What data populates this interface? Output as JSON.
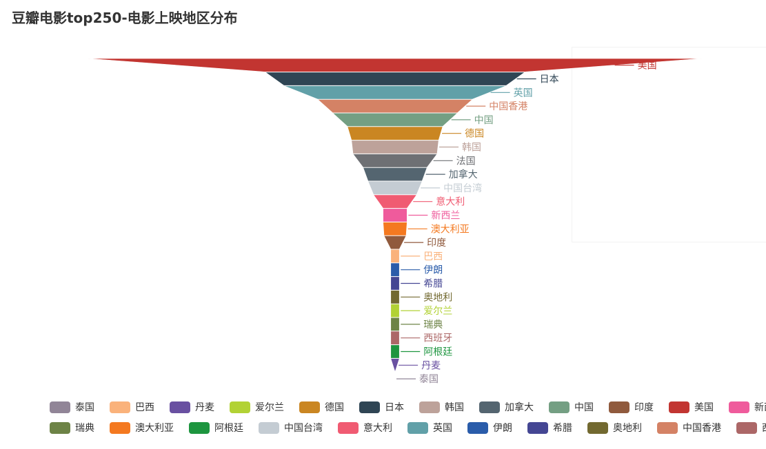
{
  "title": "豆瓣电影top250-电影上映地区分布",
  "chart_data": {
    "type": "funnel",
    "sort": "descending",
    "series": [
      {
        "name": "美国",
        "color": "#c23531",
        "rank": 1
      },
      {
        "name": "日本",
        "color": "#2f4554",
        "rank": 2
      },
      {
        "name": "英国",
        "color": "#61a0a8",
        "rank": 3
      },
      {
        "name": "中国香港",
        "color": "#d48265",
        "rank": 4
      },
      {
        "name": "中国",
        "color": "#749f83",
        "rank": 5
      },
      {
        "name": "德国",
        "color": "#ca8622",
        "rank": 6
      },
      {
        "name": "韩国",
        "color": "#bda29a",
        "rank": 7
      },
      {
        "name": "法国",
        "color": "#6e7074",
        "rank": 8
      },
      {
        "name": "加拿大",
        "color": "#546570",
        "rank": 9
      },
      {
        "name": "中国台湾",
        "color": "#c4ccd3",
        "rank": 10
      },
      {
        "name": "意大利",
        "color": "#f05b72",
        "rank": 11
      },
      {
        "name": "新西兰",
        "color": "#ef5b9c",
        "rank": 12
      },
      {
        "name": "澳大利亚",
        "color": "#f47920",
        "rank": 13
      },
      {
        "name": "印度",
        "color": "#905a3d",
        "rank": 14
      },
      {
        "name": "巴西",
        "color": "#fab27b",
        "rank": 15
      },
      {
        "name": "伊朗",
        "color": "#2a5caa",
        "rank": 16
      },
      {
        "name": "希腊",
        "color": "#444693",
        "rank": 17
      },
      {
        "name": "奥地利",
        "color": "#726930",
        "rank": 18
      },
      {
        "name": "爱尔兰",
        "color": "#b2d235",
        "rank": 19
      },
      {
        "name": "瑞典",
        "color": "#6d8346",
        "rank": 20
      },
      {
        "name": "西班牙",
        "color": "#ac6767",
        "rank": 21
      },
      {
        "name": "阿根廷",
        "color": "#1d953f",
        "rank": 22
      },
      {
        "name": "丹麦",
        "color": "#6950a1",
        "rank": 23
      },
      {
        "name": "泰国",
        "color": "#918597",
        "rank": 24
      }
    ],
    "relative_widths": [
      1.0,
      0.423,
      0.362,
      0.252,
      0.203,
      0.155,
      0.142,
      0.137,
      0.104,
      0.088,
      0.07,
      0.039,
      0.039,
      0.036,
      0.014,
      0.014,
      0.014,
      0.014,
      0.014,
      0.014,
      0.014,
      0.014,
      0.014,
      0.0
    ],
    "legend": {
      "position": "bottom",
      "rows": [
        [
          "泰国",
          "巴西",
          "丹麦",
          "爱尔兰",
          "德国",
          "日本",
          "韩国",
          "加拿大",
          "中国",
          "印度",
          "美国",
          "新西兰"
        ],
        [
          "瑞典",
          "澳大利亚",
          "阿根廷",
          "中国台湾",
          "意大利",
          "英国",
          "伊朗",
          "希腊",
          "奥地利",
          "中国香港",
          "西班牙"
        ]
      ]
    }
  }
}
